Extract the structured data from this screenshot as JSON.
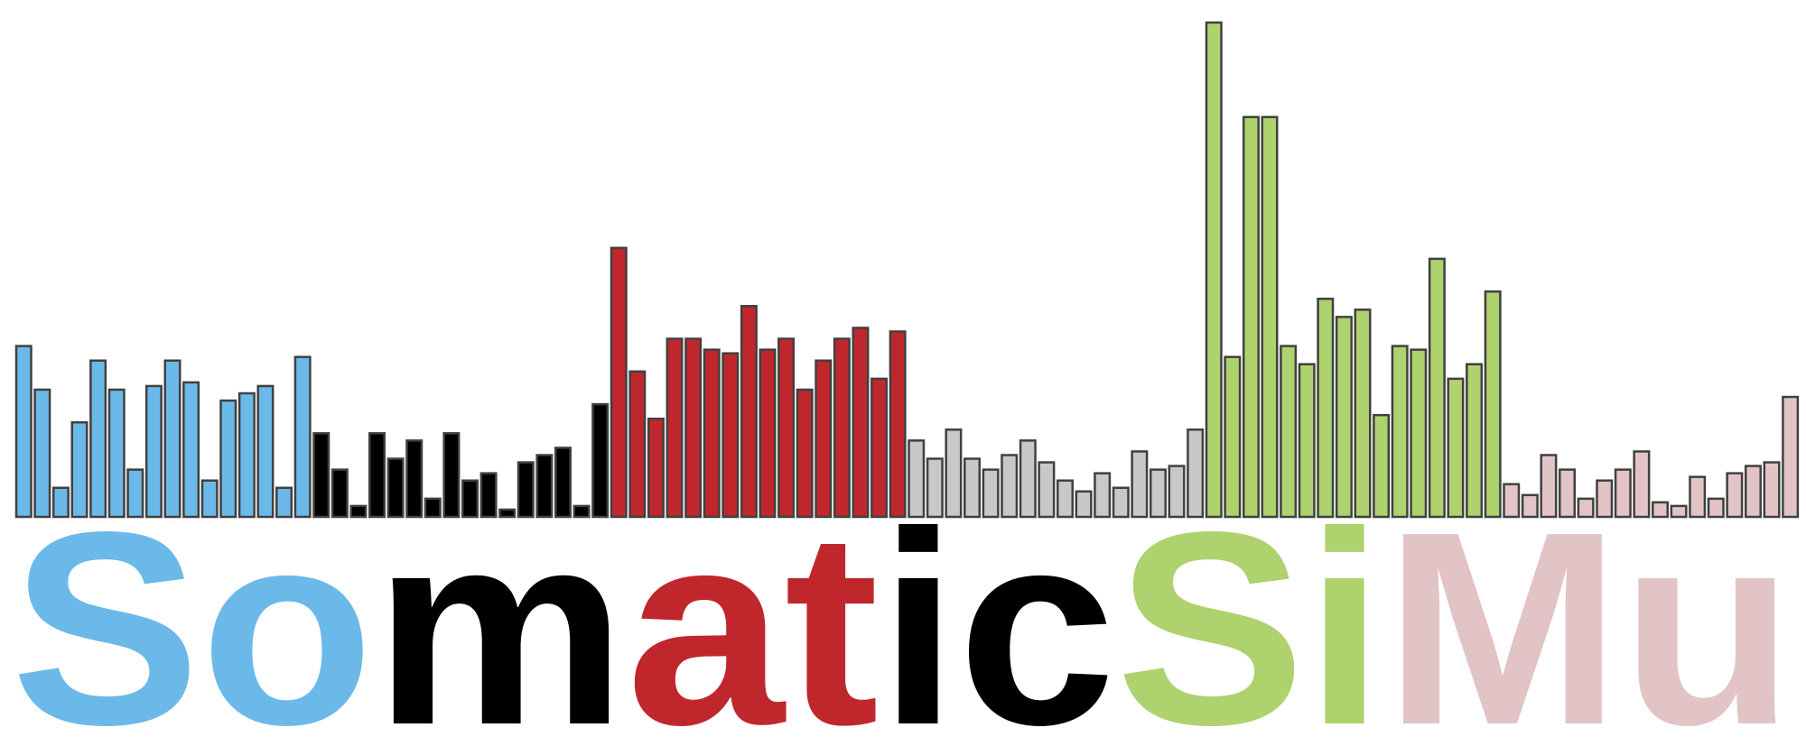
{
  "logo": {
    "segments": [
      {
        "text": "So",
        "color": "#6bb9e8",
        "bar_values": [
          47,
          35,
          8,
          26,
          43,
          35,
          13,
          36,
          43,
          37,
          10,
          32,
          34,
          36,
          8,
          44
        ]
      },
      {
        "text": "matic",
        "color": "#000000",
        "bar_values": [
          23,
          13,
          3,
          23,
          16,
          21,
          5,
          23,
          10,
          12,
          2,
          15,
          17,
          19,
          3,
          31
        ]
      },
      {
        "text": "Si",
        "color": "#c0272d",
        "bar_values": [
          74,
          40,
          27,
          49,
          49,
          46,
          45,
          58,
          46,
          49,
          35,
          43,
          49,
          52,
          38,
          51
        ]
      },
      {
        "text": "M",
        "color": "#c8c8c8",
        "bar_values": [
          21,
          16,
          24,
          16,
          13,
          17,
          21,
          15,
          10,
          7,
          12,
          8,
          18,
          13,
          14,
          24
        ]
      },
      {
        "text": "u",
        "color": "#aed26d",
        "bar_values": [
          136,
          44,
          110,
          110,
          47,
          42,
          60,
          55,
          57,
          28,
          47,
          46,
          71,
          38,
          42,
          62
        ]
      },
      {
        "text": "",
        "color": "#e2c4c6",
        "bar_values": [
          9,
          6,
          17,
          13,
          5,
          10,
          13,
          18,
          4,
          3,
          11,
          5,
          12,
          14,
          15,
          33
        ]
      }
    ],
    "word_colored": [
      {
        "text": "So",
        "color": "#6bb9e8"
      },
      {
        "text": "matic",
        "color": "#000000"
      },
      {
        "text": "a",
        "color": "#c0272d"
      },
      {
        "text": "t",
        "color": "#c0272d"
      },
      {
        "text": "Si",
        "color": "#aed26d"
      },
      {
        "text": "Mu",
        "color": "#e2c4c6"
      }
    ],
    "word_runs": [
      {
        "text": "So",
        "color": "#6bb9e8"
      },
      {
        "text": "m",
        "color": "#000000"
      },
      {
        "text": "at",
        "color": "#c0272d"
      },
      {
        "text": "ic",
        "color": "#000000"
      },
      {
        "text": "Si",
        "color": "#aed26d"
      },
      {
        "text": "Mu",
        "color": "#e2c4c6"
      }
    ],
    "word": "SomaticSiMu"
  }
}
